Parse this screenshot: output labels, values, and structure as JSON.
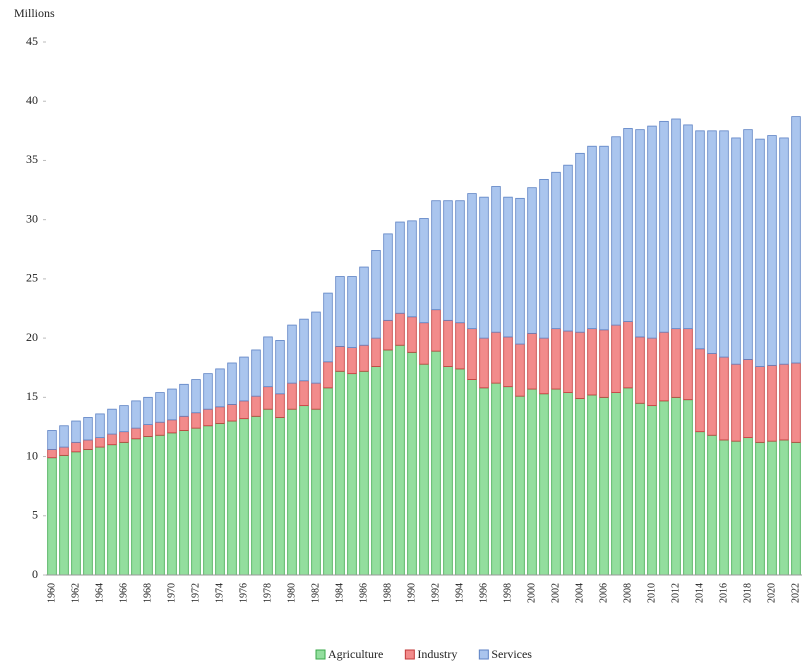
{
  "chart_data": {
    "type": "stacked_bar",
    "ylabel": "Millions",
    "categories": [
      "1960",
      null,
      "1962",
      null,
      "1964",
      null,
      "1966",
      null,
      "1968",
      null,
      "1970",
      null,
      "1972",
      null,
      "1974",
      null,
      "1976",
      null,
      "1978",
      null,
      "1980",
      null,
      "1982",
      null,
      "1984",
      null,
      "1986",
      null,
      "1988",
      null,
      "1990",
      null,
      "1992",
      null,
      "1994",
      null,
      "1996",
      null,
      "1998",
      null,
      "2000",
      null,
      "2002",
      null,
      "2004",
      null,
      "2006",
      null,
      "2008",
      null,
      "2010",
      null,
      "2012",
      null,
      "2014",
      null,
      "2016",
      null,
      "2018",
      null,
      "2020",
      null,
      "2022"
    ],
    "series": [
      {
        "name": "Agriculture",
        "color": "#93de9e",
        "edgecolor": "#3aa84a",
        "values": [
          9.9,
          10.1,
          10.4,
          10.6,
          10.8,
          11.0,
          11.2,
          11.5,
          11.7,
          11.8,
          12.0,
          12.2,
          12.4,
          12.6,
          12.8,
          13.0,
          13.2,
          13.4,
          14.0,
          13.3,
          14.0,
          14.3,
          14.0,
          15.8,
          17.2,
          17.0,
          17.2,
          17.6,
          19.0,
          19.4,
          18.8,
          17.8,
          18.9,
          17.6,
          17.4,
          16.5,
          15.8,
          16.2,
          15.9,
          15.1,
          15.7,
          15.3,
          15.7,
          15.4,
          14.9,
          15.2,
          15.0,
          15.4,
          15.8,
          14.5,
          14.3,
          14.7,
          15.0,
          14.8,
          12.1,
          11.8,
          11.4,
          11.3,
          11.6,
          11.2,
          11.3,
          11.4,
          11.2
        ]
      },
      {
        "name": "Industry",
        "color": "#f28b8b",
        "edgecolor": "#c23a3a",
        "values": [
          0.7,
          0.7,
          0.8,
          0.8,
          0.8,
          0.9,
          0.9,
          0.9,
          1.0,
          1.1,
          1.1,
          1.2,
          1.3,
          1.4,
          1.4,
          1.4,
          1.5,
          1.7,
          1.9,
          2.0,
          2.2,
          2.1,
          2.2,
          2.2,
          2.1,
          2.2,
          2.2,
          2.4,
          2.5,
          2.7,
          3.0,
          3.5,
          3.5,
          3.9,
          3.9,
          4.3,
          4.2,
          4.3,
          4.2,
          4.4,
          4.7,
          4.7,
          5.1,
          5.2,
          5.6,
          5.6,
          5.7,
          5.7,
          5.6,
          5.6,
          5.7,
          5.8,
          5.8,
          6.0,
          7.0,
          6.9,
          7.0,
          6.5,
          6.6,
          6.4,
          6.4,
          6.4,
          6.7
        ]
      },
      {
        "name": "Services",
        "color": "#aac5ee",
        "edgecolor": "#5d82c4",
        "values": [
          1.6,
          1.8,
          1.8,
          1.9,
          2.0,
          2.1,
          2.2,
          2.3,
          2.3,
          2.5,
          2.6,
          2.7,
          2.8,
          3.0,
          3.2,
          3.5,
          3.7,
          3.9,
          4.2,
          4.5,
          4.9,
          5.2,
          6.0,
          5.8,
          5.9,
          6.0,
          6.6,
          7.4,
          7.3,
          7.7,
          8.1,
          8.8,
          9.2,
          10.1,
          10.3,
          11.4,
          11.9,
          12.3,
          11.8,
          12.3,
          12.3,
          13.4,
          13.2,
          14.0,
          15.1,
          15.4,
          15.5,
          15.9,
          16.3,
          17.5,
          17.9,
          17.8,
          17.7,
          17.2,
          18.4,
          18.8,
          19.1,
          19.1,
          19.4,
          19.2,
          19.4,
          19.1,
          20.8
        ]
      }
    ],
    "ylim": [
      0,
      45
    ],
    "yticks": [
      0,
      5,
      10,
      15,
      20,
      25,
      30,
      35,
      40,
      45
    ],
    "grid": false,
    "legend": "bottom"
  }
}
